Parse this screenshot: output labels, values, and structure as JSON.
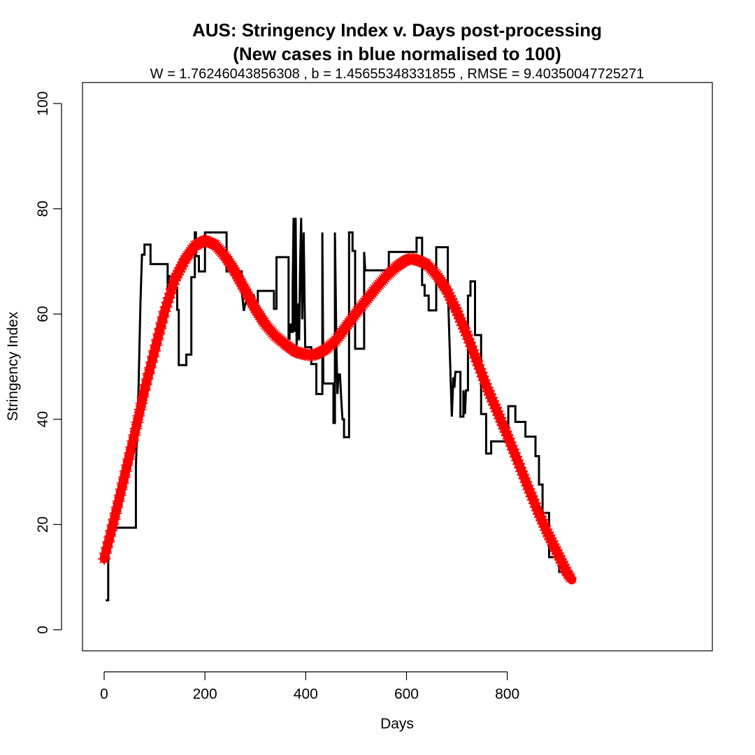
{
  "chart_data": {
    "type": "line",
    "title_line1": "AUS: Stringency Index v. Days post-processing",
    "title_line2": "(New cases in blue normalised to 100)",
    "subtitle": "W = 1.76246043856308 , b = 1.45655348331855 , RMSE = 9.40350047725271",
    "xlabel": "Days",
    "ylabel": "Stringency Index",
    "xlim": [
      -43,
      1207
    ],
    "ylim": [
      -4,
      104
    ],
    "x_ticks": [
      0,
      200,
      400,
      600,
      800
    ],
    "y_ticks": [
      0,
      20,
      40,
      60,
      80,
      100
    ],
    "x_tick_labels": [
      "0",
      "200",
      "400",
      "600",
      "800"
    ],
    "y_tick_labels": [
      "0",
      "20",
      "40",
      "60",
      "80",
      "100"
    ],
    "grid": false,
    "series": [
      {
        "color": "#000000",
        "style": "step",
        "points": [
          [
            3,
            5.6
          ],
          [
            8,
            5.6
          ],
          [
            8,
            13
          ],
          [
            11,
            19.4
          ],
          [
            63,
            19.4
          ],
          [
            63,
            31
          ],
          [
            68,
            45
          ],
          [
            72,
            62
          ],
          [
            75,
            71.3
          ],
          [
            80,
            71.3
          ],
          [
            80,
            73.2
          ],
          [
            92,
            73.2
          ],
          [
            92,
            69.5
          ],
          [
            126,
            69.5
          ],
          [
            126,
            64.5
          ],
          [
            129,
            67.2
          ],
          [
            135,
            67.2
          ],
          [
            135,
            65
          ],
          [
            145,
            65
          ],
          [
            145,
            60.8
          ],
          [
            148,
            60.8
          ],
          [
            148,
            50.3
          ],
          [
            163,
            50.3
          ],
          [
            163,
            52.3
          ],
          [
            173,
            52.3
          ],
          [
            173,
            67
          ],
          [
            180,
            67
          ],
          [
            180,
            75.5
          ],
          [
            182,
            75.5
          ],
          [
            182,
            71
          ],
          [
            188,
            71
          ],
          [
            188,
            68.1
          ],
          [
            200,
            68.1
          ],
          [
            200,
            75.5
          ],
          [
            243,
            75.5
          ],
          [
            243,
            68.1
          ],
          [
            273,
            68.1
          ],
          [
            273,
            64.5
          ],
          [
            277,
            60.6
          ],
          [
            281,
            62.3
          ],
          [
            289,
            62.3
          ],
          [
            289,
            63.6
          ],
          [
            297,
            63.6
          ],
          [
            297,
            62.1
          ],
          [
            305,
            62.1
          ],
          [
            305,
            64.4
          ],
          [
            337,
            64.4
          ],
          [
            337,
            61
          ],
          [
            342,
            61
          ],
          [
            342,
            70.8
          ],
          [
            366,
            70.8
          ],
          [
            366,
            55.3
          ],
          [
            368,
            55.3
          ],
          [
            368,
            58
          ],
          [
            371,
            58
          ],
          [
            371,
            56.6
          ],
          [
            374,
            56.6
          ],
          [
            374,
            65
          ],
          [
            376,
            78.3
          ],
          [
            378,
            56.6
          ],
          [
            380,
            78.3
          ],
          [
            382,
            54
          ],
          [
            385,
            62
          ],
          [
            387,
            55
          ],
          [
            389,
            70
          ],
          [
            391,
            78.3
          ],
          [
            393,
            59
          ],
          [
            396,
            75.5
          ],
          [
            399,
            53.7
          ],
          [
            411,
            53.7
          ],
          [
            411,
            50.5
          ],
          [
            421,
            50.5
          ],
          [
            421,
            44.8
          ],
          [
            433,
            44.8
          ],
          [
            433,
            75.5
          ],
          [
            435,
            46.8
          ],
          [
            455,
            46.8
          ],
          [
            455,
            39.3
          ],
          [
            458,
            39.3
          ],
          [
            458,
            75.5
          ],
          [
            461,
            53
          ],
          [
            463,
            44.8
          ],
          [
            465,
            48.5
          ],
          [
            468,
            48.5
          ],
          [
            470,
            44.7
          ],
          [
            473,
            40
          ],
          [
            476,
            40
          ],
          [
            476,
            36.6
          ],
          [
            486,
            36.6
          ],
          [
            486,
            75.5
          ],
          [
            493,
            75.5
          ],
          [
            493,
            72
          ],
          [
            498,
            72
          ],
          [
            498,
            53.4
          ],
          [
            516,
            53.4
          ],
          [
            516,
            71.8
          ],
          [
            518,
            68.3
          ],
          [
            565,
            68.3
          ],
          [
            565,
            71.8
          ],
          [
            620,
            71.8
          ],
          [
            620,
            74.5
          ],
          [
            631,
            74.5
          ],
          [
            631,
            65.5
          ],
          [
            636,
            65.5
          ],
          [
            636,
            63.5
          ],
          [
            644,
            63.5
          ],
          [
            644,
            60.7
          ],
          [
            659,
            60.7
          ],
          [
            659,
            72.7
          ],
          [
            682,
            72.7
          ],
          [
            682,
            65
          ],
          [
            690,
            40.5
          ],
          [
            693,
            48
          ],
          [
            695,
            46
          ],
          [
            697,
            49
          ],
          [
            707,
            49
          ],
          [
            707,
            40.5
          ],
          [
            713,
            40.5
          ],
          [
            713,
            45.5
          ],
          [
            716,
            41
          ],
          [
            718,
            45.5
          ],
          [
            722,
            45.5
          ],
          [
            722,
            63.5
          ],
          [
            727,
            63.5
          ],
          [
            727,
            66.2
          ],
          [
            736,
            66.2
          ],
          [
            736,
            56
          ],
          [
            748,
            56
          ],
          [
            748,
            41
          ],
          [
            758,
            41
          ],
          [
            758,
            33.5
          ],
          [
            768,
            33.5
          ],
          [
            768,
            35.8
          ],
          [
            802,
            35.8
          ],
          [
            802,
            42.5
          ],
          [
            816,
            42.5
          ],
          [
            816,
            39.5
          ],
          [
            836,
            39.5
          ],
          [
            836,
            36.7
          ],
          [
            856,
            36.7
          ],
          [
            856,
            33
          ],
          [
            863,
            33
          ],
          [
            863,
            27.6
          ],
          [
            870,
            27.6
          ],
          [
            870,
            22.2
          ],
          [
            883,
            22.2
          ],
          [
            883,
            13.8
          ],
          [
            903,
            13.8
          ],
          [
            903,
            11
          ],
          [
            928,
            11
          ]
        ]
      },
      {
        "color": "#ff0000",
        "style": "markers",
        "marker": "asterisk",
        "points": [
          [
            0,
            13.5
          ],
          [
            20,
            21
          ],
          [
            40,
            29
          ],
          [
            60,
            37
          ],
          [
            80,
            45.5
          ],
          [
            100,
            53
          ],
          [
            120,
            60.5
          ],
          [
            140,
            66.5
          ],
          [
            160,
            70.3
          ],
          [
            180,
            73
          ],
          [
            200,
            74
          ],
          [
            220,
            73.2
          ],
          [
            240,
            71
          ],
          [
            260,
            68
          ],
          [
            280,
            64.5
          ],
          [
            300,
            61
          ],
          [
            320,
            58
          ],
          [
            340,
            55.8
          ],
          [
            360,
            54.2
          ],
          [
            380,
            52.8
          ],
          [
            400,
            52.3
          ],
          [
            410,
            52.2
          ],
          [
            420,
            52.3
          ],
          [
            440,
            53.3
          ],
          [
            460,
            55
          ],
          [
            480,
            57.6
          ],
          [
            500,
            60.2
          ],
          [
            520,
            62.6
          ],
          [
            540,
            65
          ],
          [
            560,
            67.2
          ],
          [
            580,
            69
          ],
          [
            600,
            70.3
          ],
          [
            610,
            70.5
          ],
          [
            620,
            70.3
          ],
          [
            640,
            69.5
          ],
          [
            660,
            67.4
          ],
          [
            680,
            64.5
          ],
          [
            700,
            60.5
          ],
          [
            720,
            56
          ],
          [
            740,
            51
          ],
          [
            760,
            46
          ],
          [
            780,
            41.5
          ],
          [
            800,
            37
          ],
          [
            820,
            32.2
          ],
          [
            840,
            27.4
          ],
          [
            860,
            22.7
          ],
          [
            880,
            18.4
          ],
          [
            900,
            14.5
          ],
          [
            920,
            10.6
          ],
          [
            928,
            9.5
          ]
        ]
      }
    ]
  }
}
